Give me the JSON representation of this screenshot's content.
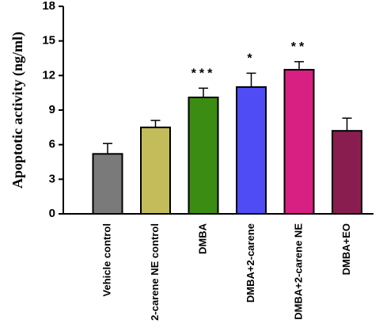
{
  "chart_data": {
    "type": "bar",
    "ylabel": "Apoptotic activity (ng/ml)",
    "categories": [
      "Vehicle control",
      "2-carene NE control",
      "DMBA",
      "DMBA+2-carene",
      "DMBA+2-carene NE",
      "DMBA+EO"
    ],
    "values": [
      5.2,
      7.5,
      10.1,
      11.0,
      12.5,
      7.2
    ],
    "errors": [
      0.9,
      0.6,
      0.8,
      1.2,
      0.7,
      1.1
    ],
    "annotations": [
      null,
      null,
      "***",
      "*",
      "**",
      null
    ],
    "colors": [
      "#7a7a7a",
      "#c4bb5a",
      "#3a8c12",
      "#4f4cf5",
      "#d81f82",
      "#8a1d50"
    ],
    "ylim": [
      0,
      18
    ],
    "yticks": [
      0,
      3,
      6,
      9,
      12,
      15,
      18
    ]
  }
}
